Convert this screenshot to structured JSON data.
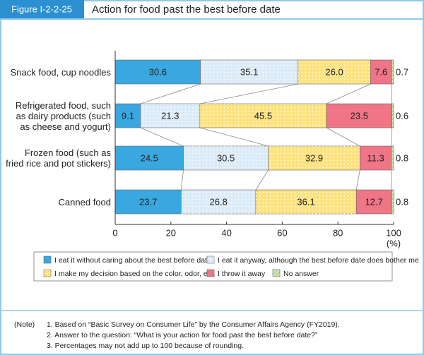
{
  "chart_data": {
    "type": "stacked_barh",
    "figure_label": "Figure I-2-2-25",
    "title": "Action for food past the best before date",
    "categories": [
      "Snack food, cup noodles",
      "Refrigerated food, such as dairy products (such as cheese and yogurt)",
      "Frozen food (such as fried rice and pot stickers)",
      "Canned food"
    ],
    "series": [
      {
        "name": "I eat it without caring about the best before date",
        "color": "#3aa8e0",
        "pattern": "none",
        "values": [
          30.6,
          9.1,
          24.5,
          23.7
        ]
      },
      {
        "name": "I eat it anyway, although the best before date does bother me",
        "color": "#dcebf8",
        "pattern": "dots",
        "values": [
          35.1,
          21.3,
          30.5,
          26.8
        ]
      },
      {
        "name": "I make my decision based on the color, odor, etc.",
        "color": "#fde27e",
        "pattern": "dots",
        "values": [
          26.0,
          45.5,
          32.9,
          36.1
        ],
        "value_labels": [
          "26.0",
          "45.5",
          "32.9",
          "36.1"
        ]
      },
      {
        "name": "I throw it away",
        "color": "#ef7587",
        "pattern": "none",
        "values": [
          7.6,
          23.5,
          11.3,
          12.7
        ]
      },
      {
        "name": "No answer",
        "color": "#cfe8b4",
        "pattern": "hatch",
        "values": [
          0.7,
          0.6,
          0.8,
          0.8
        ]
      }
    ],
    "xlim": [
      0,
      100
    ],
    "xticks": [
      0,
      20,
      40,
      60,
      80,
      100
    ],
    "xlabel": "(%)"
  },
  "notes": {
    "label": "(Note)",
    "items": [
      "1. Based on “Basic Survey on Consumer Life” by the Consumer Affairs Agency (FY2019).",
      "2. Answer to the question: “What is your action for food past the best before date?”",
      "3. Percentages may not add up to 100 because of rounding."
    ]
  }
}
